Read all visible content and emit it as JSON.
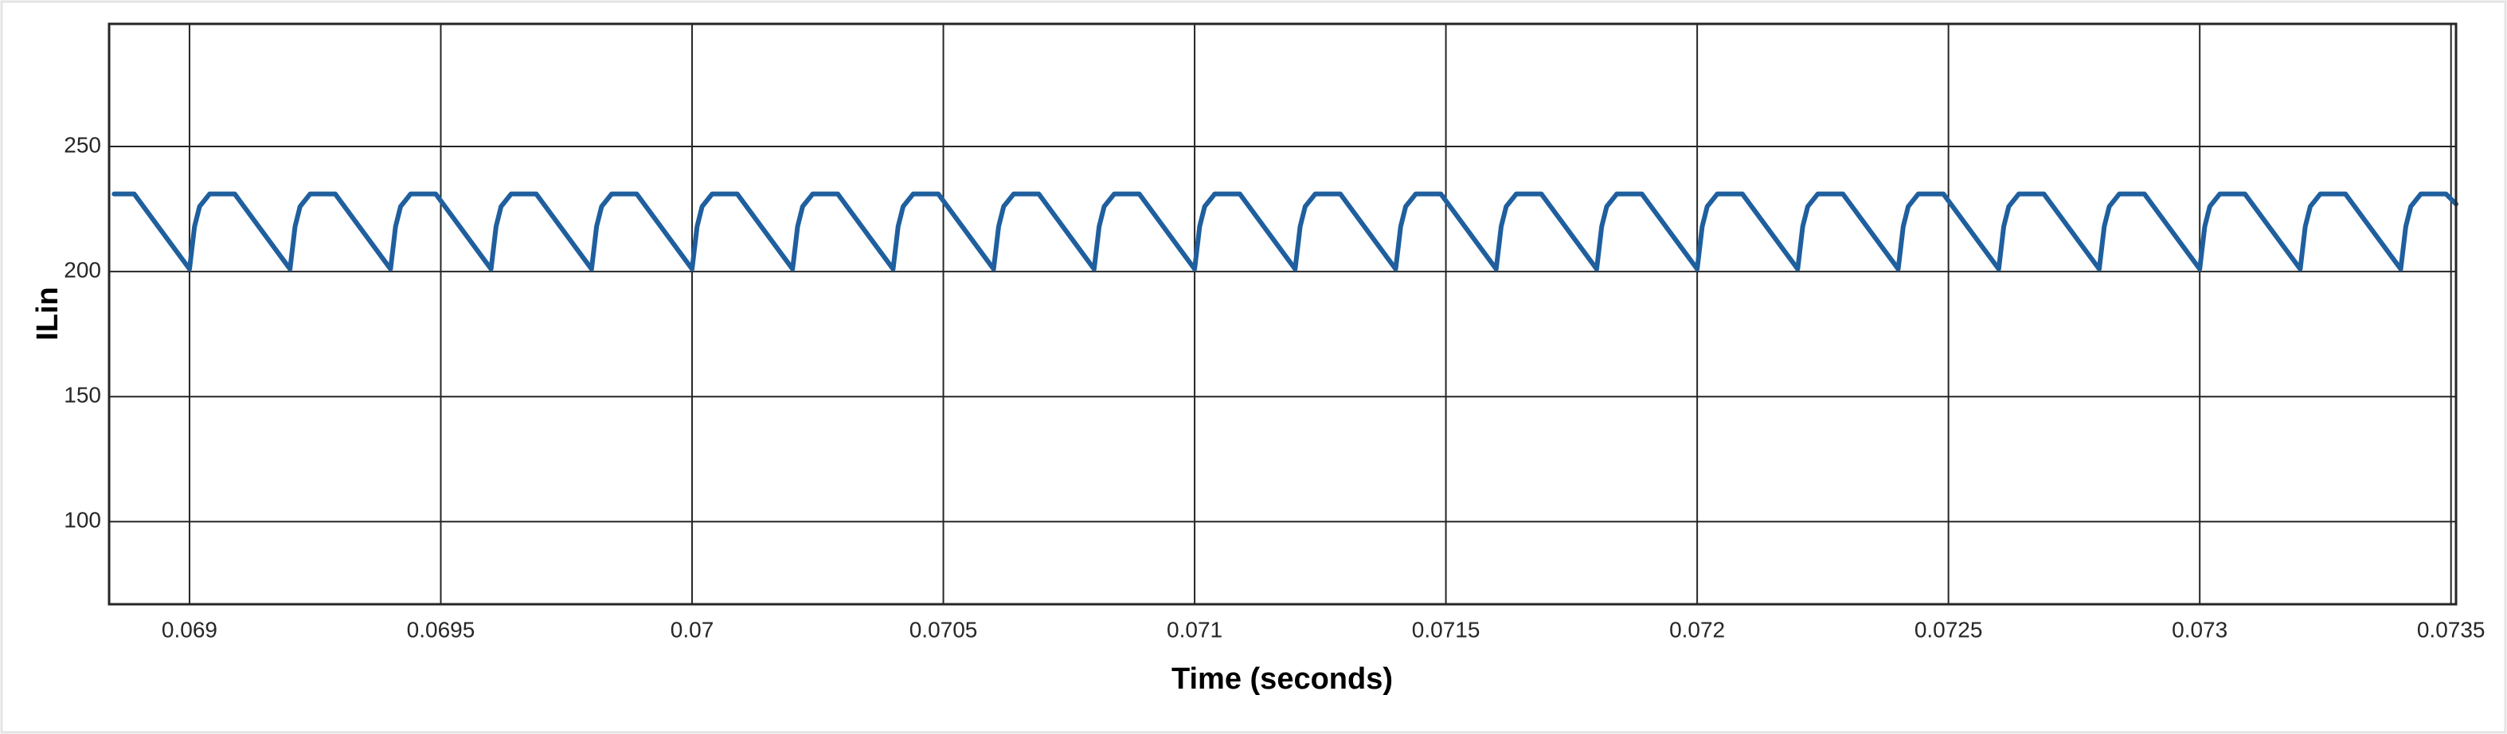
{
  "chart_data": {
    "type": "line",
    "xlabel": "Time (seconds)",
    "ylabel": "ILin",
    "grid": true,
    "xlim": [
      0.06884,
      0.07351
    ],
    "ylim": [
      67,
      299
    ],
    "xticks": [
      0.069,
      0.0695,
      0.07,
      0.0705,
      0.071,
      0.0715,
      0.072,
      0.0725,
      0.073,
      0.0735
    ],
    "yticks": [
      100,
      150,
      200,
      250
    ],
    "x": [
      0.06885,
      0.06889,
      0.069,
      0.06901,
      0.06902,
      0.06904,
      0.06909,
      0.0692,
      0.06921,
      0.06922,
      0.06924,
      0.06929,
      0.0694,
      0.06941,
      0.06942,
      0.06944,
      0.06949,
      0.0696,
      0.06961,
      0.06962,
      0.06964,
      0.06969,
      0.0698,
      0.06981,
      0.06982,
      0.06984,
      0.06989,
      0.07,
      0.07001,
      0.07002,
      0.07004,
      0.07009,
      0.0702,
      0.07021,
      0.07022,
      0.07024,
      0.07029,
      0.0704,
      0.07041,
      0.07042,
      0.07044,
      0.07049,
      0.0706,
      0.07061,
      0.07062,
      0.07064,
      0.07069,
      0.0708,
      0.07081,
      0.07082,
      0.07084,
      0.07089,
      0.071,
      0.07101,
      0.07102,
      0.07104,
      0.07109,
      0.0712,
      0.07121,
      0.07122,
      0.07124,
      0.07129,
      0.0714,
      0.07141,
      0.07142,
      0.07144,
      0.07149,
      0.0716,
      0.07161,
      0.07162,
      0.07164,
      0.07169,
      0.0718,
      0.07181,
      0.07182,
      0.07184,
      0.07189,
      0.072,
      0.07201,
      0.07202,
      0.07204,
      0.07209,
      0.0722,
      0.07221,
      0.07222,
      0.07224,
      0.07229,
      0.0724,
      0.07241,
      0.07242,
      0.07244,
      0.07249,
      0.0726,
      0.07261,
      0.07262,
      0.07264,
      0.07269,
      0.0728,
      0.07281,
      0.07282,
      0.07284,
      0.07289,
      0.073,
      0.07301,
      0.07302,
      0.07304,
      0.07309,
      0.0732,
      0.07321,
      0.07322,
      0.07324,
      0.07329,
      0.0734,
      0.07341,
      0.07342,
      0.07344,
      0.07349,
      0.07351
    ],
    "series": [
      {
        "color": "#1f5f9e",
        "values": [
          231,
          231,
          201,
          218,
          226,
          231,
          231,
          201,
          218,
          226,
          231,
          231,
          201,
          218,
          226,
          231,
          231,
          201,
          218,
          226,
          231,
          231,
          201,
          218,
          226,
          231,
          231,
          201,
          218,
          226,
          231,
          231,
          201,
          218,
          226,
          231,
          231,
          201,
          218,
          226,
          231,
          231,
          201,
          218,
          226,
          231,
          231,
          201,
          218,
          226,
          231,
          231,
          201,
          218,
          226,
          231,
          231,
          201,
          218,
          226,
          231,
          231,
          201,
          218,
          226,
          231,
          231,
          201,
          218,
          226,
          231,
          231,
          201,
          218,
          226,
          231,
          231,
          201,
          218,
          226,
          231,
          231,
          201,
          218,
          226,
          231,
          231,
          201,
          218,
          226,
          231,
          231,
          201,
          218,
          226,
          231,
          231,
          201,
          218,
          226,
          231,
          231,
          201,
          218,
          226,
          231,
          231,
          201,
          218,
          226,
          231,
          231,
          201,
          218,
          226,
          231,
          231,
          227
        ]
      }
    ]
  }
}
